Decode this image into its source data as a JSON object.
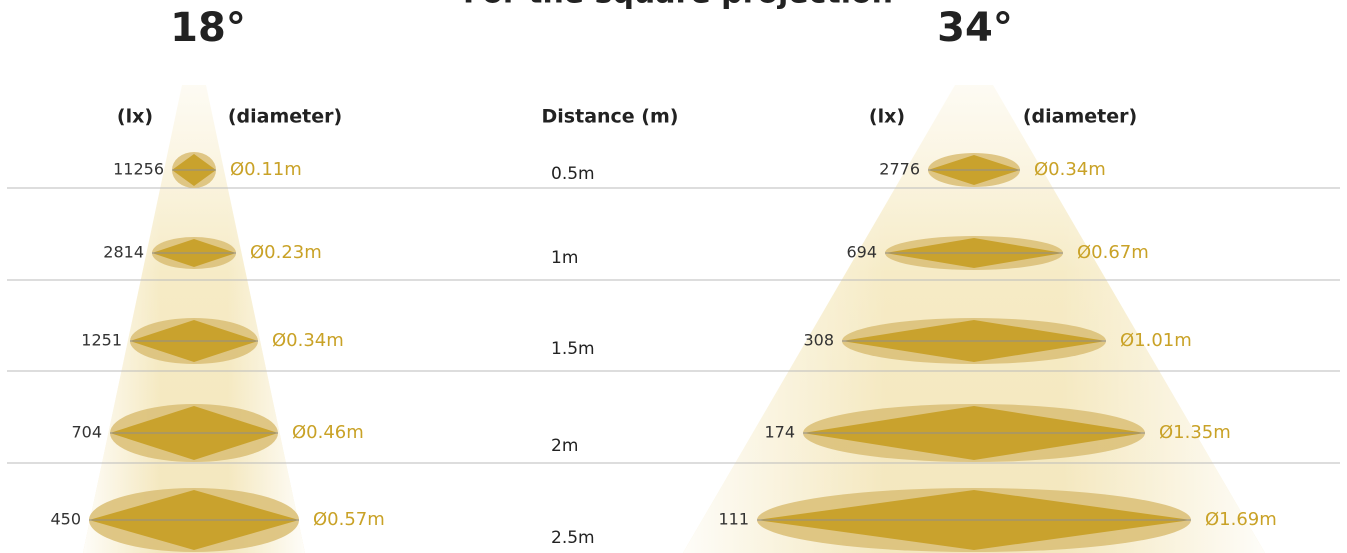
{
  "title": "For the square projection",
  "distance_header": "Distance (m)",
  "distances": [
    "0.5m",
    "1m",
    "1.5m",
    "2m",
    "2.5m"
  ],
  "beams": [
    {
      "angle": "18°",
      "lux_header": "(lx)",
      "diameter_header": "(diameter)",
      "rows": [
        {
          "lux": "11256",
          "diameter": "Ø0.11m"
        },
        {
          "lux": "2814",
          "diameter": "Ø0.23m"
        },
        {
          "lux": "1251",
          "diameter": "Ø0.34m"
        },
        {
          "lux": "704",
          "diameter": "Ø0.46m"
        },
        {
          "lux": "450",
          "diameter": "Ø0.57m"
        }
      ]
    },
    {
      "angle": "34°",
      "lux_header": "(lx)",
      "diameter_header": "(diameter)",
      "rows": [
        {
          "lux": "2776",
          "diameter": "Ø0.34m"
        },
        {
          "lux": "694",
          "diameter": "Ø0.67m"
        },
        {
          "lux": "308",
          "diameter": "Ø1.01m"
        },
        {
          "lux": "174",
          "diameter": "Ø1.35m"
        },
        {
          "lux": "111",
          "diameter": "Ø1.69m"
        }
      ]
    }
  ]
}
